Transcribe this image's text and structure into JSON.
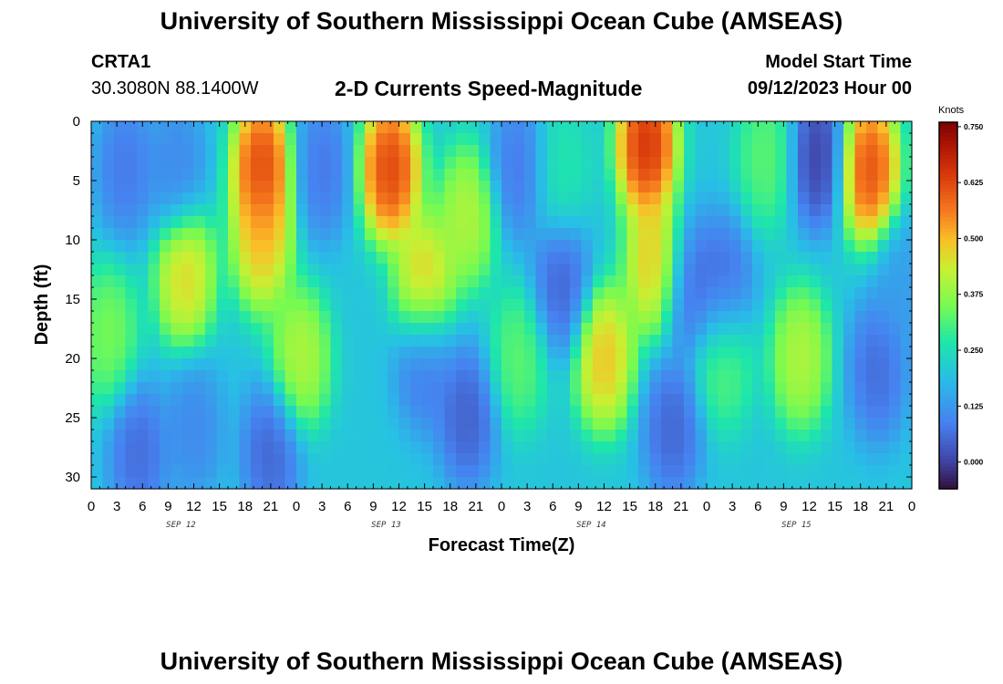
{
  "header": {
    "title": "University of Southern Mississippi Ocean Cube (AMSEAS)",
    "station": "CRTA1",
    "coords": "30.3080N  88.1400W",
    "subtitle": "2-D Currents Speed-Magnitude",
    "model_start_label": "Model Start Time",
    "model_start_value": "09/12/2023 Hour 00"
  },
  "footer": {
    "title": "University of Southern Mississippi Ocean Cube (AMSEAS)"
  },
  "chart_data": {
    "type": "heatmap",
    "title": "2-D Currents Speed-Magnitude",
    "xlabel": "Forecast Time(Z)",
    "ylabel": "Depth (ft)",
    "x_hours_range": [
      0,
      96
    ],
    "x_tick_labels": [
      "0",
      "3",
      "6",
      "9",
      "12",
      "15",
      "18",
      "21",
      "0",
      "3",
      "6",
      "9",
      "12",
      "15",
      "18",
      "21",
      "0",
      "3",
      "6",
      "9",
      "12",
      "15",
      "18",
      "21",
      "0",
      "3",
      "6",
      "9",
      "12",
      "15",
      "18",
      "21",
      "0"
    ],
    "day_labels": [
      "SEP 12",
      "SEP 13",
      "SEP 14",
      "SEP 15"
    ],
    "ylim": [
      0,
      31
    ],
    "y_ticks": [
      0,
      5,
      10,
      15,
      20,
      25,
      30
    ],
    "colorbar": {
      "unit": "Knots",
      "ticks": [
        "0.750",
        "0.625",
        "0.500",
        "0.375",
        "0.250",
        "0.125",
        "0.000"
      ],
      "range": [
        -0.06,
        0.76
      ]
    },
    "speed_knots_blobs": [
      {
        "t": 4,
        "d": 4,
        "speed": 0.05
      },
      {
        "t": 10,
        "d": 4,
        "speed": 0.08
      },
      {
        "t": 2,
        "d": 18,
        "speed": 0.38
      },
      {
        "t": 11,
        "d": 13,
        "speed": 0.52
      },
      {
        "t": 20,
        "d": 4,
        "speed": 0.72
      },
      {
        "t": 20,
        "d": 10,
        "speed": 0.55
      },
      {
        "t": 5.5,
        "d": 28,
        "speed": 0.03
      },
      {
        "t": 12,
        "d": 26,
        "speed": 0.08
      },
      {
        "t": 21,
        "d": 28,
        "speed": 0.02
      },
      {
        "t": 24.5,
        "d": 20,
        "speed": 0.45
      },
      {
        "t": 27,
        "d": 4,
        "speed": 0.05
      },
      {
        "t": 35,
        "d": 4,
        "speed": 0.72
      },
      {
        "t": 39,
        "d": 14,
        "speed": 0.55
      },
      {
        "t": 39,
        "d": 20,
        "speed": 0.04
      },
      {
        "t": 44,
        "d": 25,
        "speed": 0.01
      },
      {
        "t": 44,
        "d": 8,
        "speed": 0.45
      },
      {
        "t": 50,
        "d": 20,
        "speed": 0.35
      },
      {
        "t": 50,
        "d": 4,
        "speed": 0.05
      },
      {
        "t": 55,
        "d": 4,
        "speed": 0.28
      },
      {
        "t": 55,
        "d": 14,
        "speed": 0.02
      },
      {
        "t": 60,
        "d": 20,
        "speed": 0.55
      },
      {
        "t": 65,
        "d": 2,
        "speed": 0.75
      },
      {
        "t": 66,
        "d": 12,
        "speed": 0.55
      },
      {
        "t": 68,
        "d": 26,
        "speed": 0.02
      },
      {
        "t": 70,
        "d": 14,
        "speed": 0.03
      },
      {
        "t": 74,
        "d": 20,
        "speed": 0.35
      },
      {
        "t": 74,
        "d": 14,
        "speed": 0.03
      },
      {
        "t": 79,
        "d": 3,
        "speed": 0.35
      },
      {
        "t": 85,
        "d": 3,
        "speed": -0.04
      },
      {
        "t": 83,
        "d": 20,
        "speed": 0.45
      },
      {
        "t": 91,
        "d": 4,
        "speed": 0.7
      },
      {
        "t": 92,
        "d": 21,
        "speed": 0.03
      },
      {
        "t": 95,
        "d": 14,
        "speed": 0.12
      }
    ],
    "background_speed": 0.2
  }
}
